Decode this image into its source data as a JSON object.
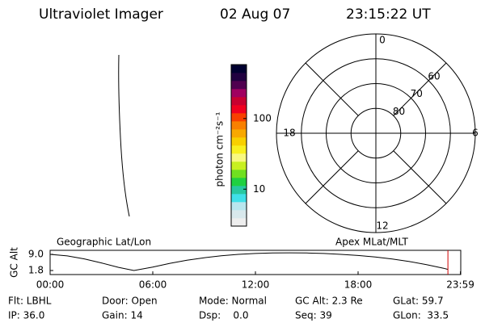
{
  "header": {
    "title": "Ultraviolet Imager",
    "date": "02 Aug 07",
    "time": "23:15:22 UT"
  },
  "colorbar": {
    "label": "photon cm⁻²s⁻¹",
    "log": true,
    "lim": [
      3,
      580
    ],
    "ticks": [
      10,
      100
    ],
    "colors": [
      "#eeeeee",
      "#d8e8ec",
      "#b8e6ee",
      "#40e0e8",
      "#28c8a0",
      "#20d040",
      "#70e020",
      "#c8f020",
      "#f8f880",
      "#f8f020",
      "#f8d000",
      "#f8a800",
      "#f88000",
      "#f84000",
      "#f00020",
      "#c80030",
      "#a00060",
      "#500050",
      "#200040",
      "#000030"
    ]
  },
  "polar": {
    "lat_range": [
      90,
      50
    ],
    "lat_rings": [
      80,
      70,
      60
    ],
    "mlt_labels": [
      12,
      18,
      6,
      0
    ]
  },
  "chart_data": {
    "type": "line",
    "ylabel": "GC Alt",
    "left_label": "Geographic Lat/Lon",
    "right_label": "Apex MLat/MLT",
    "x": [
      0,
      1,
      2,
      3,
      4,
      4.9,
      6,
      7,
      8,
      9,
      10,
      11,
      12,
      13,
      14,
      15,
      16,
      17,
      18,
      19,
      20,
      21,
      22,
      23,
      23.25
    ],
    "values": [
      9.0,
      8.3,
      7.0,
      5.2,
      3.2,
      1.8,
      3.3,
      5.0,
      6.4,
      7.5,
      8.4,
      9.0,
      9.4,
      9.6,
      9.7,
      9.6,
      9.4,
      9.0,
      8.5,
      7.8,
      6.9,
      5.8,
      4.4,
      2.8,
      2.3
    ],
    "marker_x": 23.25,
    "marker_color": "#d00000",
    "xlim": [
      0,
      24
    ],
    "ylim": [
      0,
      10.8
    ],
    "xticks": [
      {
        "value": 0,
        "label": "00:00"
      },
      {
        "value": 6,
        "label": "06:00"
      },
      {
        "value": 12,
        "label": "12:00"
      },
      {
        "value": 18,
        "label": "18:00"
      },
      {
        "value": 23.98,
        "label": "23:59"
      }
    ],
    "yticks": [
      {
        "value": 9,
        "label": "9.0"
      },
      1.8
    ]
  },
  "info": {
    "rows": [
      [
        "Flt: LBHL",
        "Door: Open",
        "Mode: Normal",
        "GC Alt: 2.3 Re",
        "GLat: 59.7"
      ],
      [
        "IP: 36.0",
        "Gain: 14",
        "Dsp:    0.0",
        "Seq: 39",
        "GLon:  33.5"
      ]
    ]
  }
}
